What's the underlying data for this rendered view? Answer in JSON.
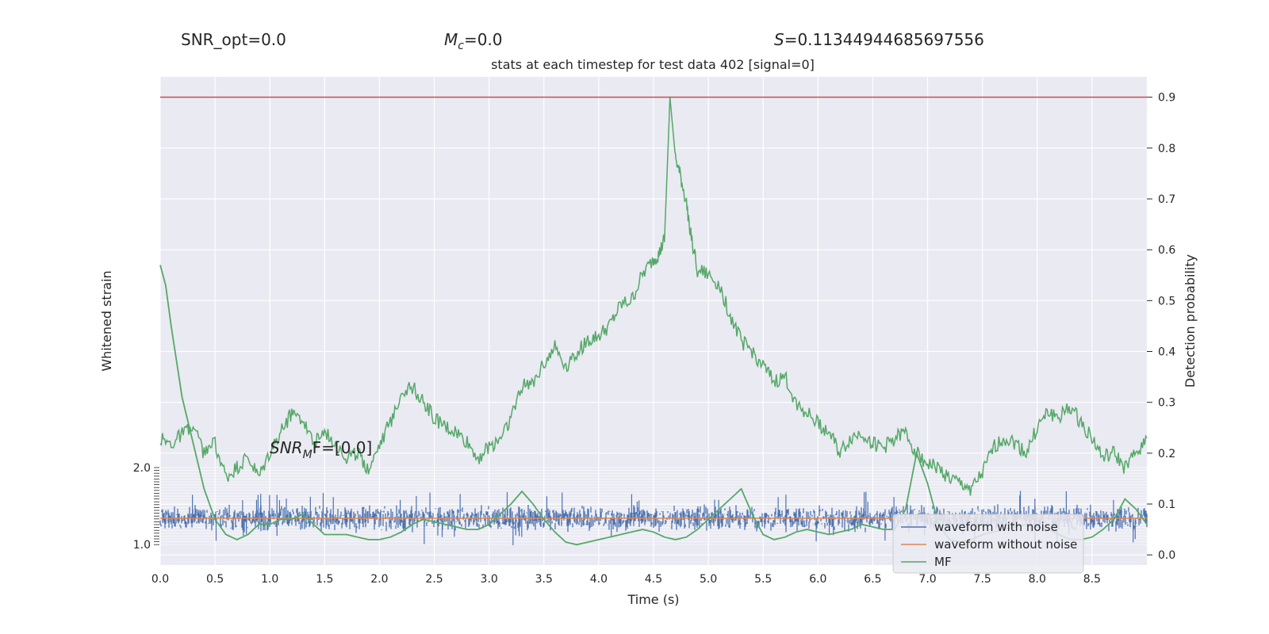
{
  "header": {
    "snr_opt": "SNR_opt=0.0",
    "mc_symbol": "M",
    "mc_sub": "c",
    "mc_value": "=0.0",
    "s_symbol": "S",
    "s_value": "=0.11344944685697556",
    "title": "stats at each timestep for test data 402 [signal=0]",
    "snr_mf_label": "SNR",
    "snr_mf_sub": "M",
    "snr_mf_value": "F=[0.0]"
  },
  "chart_data": {
    "type": "line",
    "title": "stats at each timestep for test data 402 [signal=0]",
    "xlabel": "Time (s)",
    "ylabel_left": "Whitened strain",
    "ylabel_right": "Detection probability",
    "xlim": [
      0,
      9.0
    ],
    "ylim_right": [
      -0.02,
      0.94
    ],
    "x_ticks": [
      "0.0",
      "0.5",
      "1.0",
      "1.5",
      "2.0",
      "2.5",
      "3.0",
      "3.5",
      "4.0",
      "4.5",
      "5.0",
      "5.5",
      "6.0",
      "6.5",
      "7.0",
      "7.5",
      "8.0",
      "8.5"
    ],
    "y_right_ticks": [
      "0.0",
      "0.1",
      "0.2",
      "0.3",
      "0.4",
      "0.5",
      "0.6",
      "0.7",
      "0.8",
      "0.9"
    ],
    "left_axis_visible_ticks": [
      "2.0",
      "1.0"
    ],
    "threshold": 0.9,
    "grid": true,
    "legend_position": "lower-right",
    "legend": [
      "waveform with noise",
      "waveform without noise",
      "MF"
    ],
    "colors": {
      "noise": "#4c72b0",
      "clean": "#dd8452",
      "mf": "#55a868",
      "threshold": "#c44e52",
      "background": "#eaeaf2"
    },
    "detection_probability": {
      "x": [
        0.0,
        0.1,
        0.2,
        0.3,
        0.4,
        0.5,
        0.6,
        0.7,
        0.8,
        0.9,
        1.0,
        1.1,
        1.2,
        1.3,
        1.4,
        1.5,
        1.6,
        1.7,
        1.8,
        1.9,
        2.0,
        2.1,
        2.2,
        2.3,
        2.4,
        2.5,
        2.6,
        2.7,
        2.8,
        2.9,
        3.0,
        3.1,
        3.2,
        3.3,
        3.4,
        3.5,
        3.6,
        3.7,
        3.8,
        3.9,
        4.0,
        4.1,
        4.2,
        4.3,
        4.4,
        4.5,
        4.55,
        4.6,
        4.65,
        4.7,
        4.75,
        4.8,
        4.85,
        4.9,
        5.0,
        5.1,
        5.2,
        5.3,
        5.4,
        5.5,
        5.6,
        5.7,
        5.8,
        5.9,
        6.0,
        6.1,
        6.2,
        6.3,
        6.4,
        6.5,
        6.6,
        6.7,
        6.8,
        6.9,
        7.0,
        7.1,
        7.2,
        7.3,
        7.4,
        7.5,
        7.6,
        7.7,
        7.8,
        7.9,
        8.0,
        8.1,
        8.2,
        8.3,
        8.4,
        8.5,
        8.6,
        8.7,
        8.8,
        8.9,
        9.0
      ],
      "y": [
        0.23,
        0.22,
        0.24,
        0.25,
        0.2,
        0.22,
        0.15,
        0.17,
        0.19,
        0.15,
        0.2,
        0.24,
        0.28,
        0.27,
        0.22,
        0.24,
        0.22,
        0.19,
        0.2,
        0.17,
        0.22,
        0.26,
        0.32,
        0.33,
        0.3,
        0.27,
        0.25,
        0.24,
        0.22,
        0.19,
        0.21,
        0.23,
        0.27,
        0.33,
        0.34,
        0.38,
        0.41,
        0.37,
        0.4,
        0.42,
        0.43,
        0.45,
        0.49,
        0.5,
        0.55,
        0.58,
        0.59,
        0.62,
        0.9,
        0.78,
        0.74,
        0.69,
        0.62,
        0.56,
        0.55,
        0.53,
        0.47,
        0.42,
        0.4,
        0.37,
        0.34,
        0.35,
        0.3,
        0.28,
        0.26,
        0.24,
        0.2,
        0.23,
        0.24,
        0.22,
        0.21,
        0.23,
        0.24,
        0.2,
        0.18,
        0.17,
        0.15,
        0.14,
        0.13,
        0.16,
        0.21,
        0.23,
        0.22,
        0.2,
        0.25,
        0.28,
        0.27,
        0.29,
        0.26,
        0.23,
        0.19,
        0.2,
        0.17,
        0.2,
        0.23
      ]
    },
    "mf": {
      "x": [
        0.0,
        0.05,
        0.1,
        0.2,
        0.3,
        0.4,
        0.5,
        0.6,
        0.7,
        0.8,
        0.9,
        1.0,
        1.1,
        1.2,
        1.3,
        1.4,
        1.5,
        1.6,
        1.7,
        1.8,
        1.9,
        2.0,
        2.1,
        2.2,
        2.3,
        2.4,
        2.5,
        2.6,
        2.7,
        2.8,
        2.9,
        3.0,
        3.1,
        3.2,
        3.3,
        3.4,
        3.5,
        3.6,
        3.7,
        3.8,
        3.9,
        4.0,
        4.1,
        4.2,
        4.3,
        4.4,
        4.5,
        4.6,
        4.7,
        4.8,
        4.9,
        5.0,
        5.1,
        5.2,
        5.3,
        5.4,
        5.5,
        5.6,
        5.7,
        5.8,
        5.9,
        6.0,
        6.1,
        6.2,
        6.3,
        6.4,
        6.5,
        6.6,
        6.7,
        6.8,
        6.9,
        7.0,
        7.1,
        7.2,
        7.3,
        7.4,
        7.5,
        7.6,
        7.7,
        7.8,
        7.9,
        8.0,
        8.1,
        8.2,
        8.3,
        8.4,
        8.5,
        8.6,
        8.7,
        8.8,
        8.9,
        9.0
      ],
      "y": [
        0.57,
        0.53,
        0.45,
        0.31,
        0.22,
        0.13,
        0.07,
        0.04,
        0.03,
        0.04,
        0.06,
        0.06,
        0.07,
        0.07,
        0.08,
        0.06,
        0.04,
        0.04,
        0.04,
        0.035,
        0.03,
        0.03,
        0.035,
        0.045,
        0.06,
        0.07,
        0.065,
        0.06,
        0.055,
        0.05,
        0.05,
        0.06,
        0.08,
        0.1,
        0.125,
        0.1,
        0.07,
        0.045,
        0.025,
        0.02,
        0.025,
        0.03,
        0.035,
        0.04,
        0.045,
        0.05,
        0.045,
        0.035,
        0.03,
        0.035,
        0.05,
        0.07,
        0.09,
        0.11,
        0.13,
        0.08,
        0.04,
        0.03,
        0.035,
        0.045,
        0.05,
        0.045,
        0.04,
        0.045,
        0.05,
        0.06,
        0.055,
        0.05,
        0.05,
        0.09,
        0.2,
        0.14,
        0.06,
        0.03,
        0.025,
        0.03,
        0.04,
        0.045,
        0.05,
        0.055,
        0.06,
        0.055,
        0.05,
        0.04,
        0.03,
        0.03,
        0.035,
        0.05,
        0.07,
        0.11,
        0.09,
        0.06
      ]
    },
    "waveform_with_noise": {
      "center": 0.072,
      "spread": 0.018
    },
    "waveform_without_noise": {
      "value": 0.072
    }
  }
}
